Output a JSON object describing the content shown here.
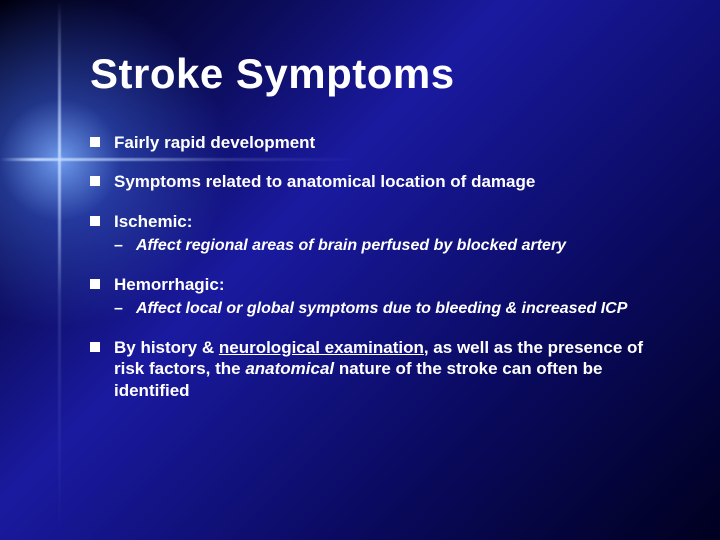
{
  "colors": {
    "text": "#ffffff",
    "bg_gradient": [
      "#000010",
      "#0a0a50",
      "#1a1aa0",
      "#0a0a60",
      "#000020"
    ],
    "flare": "#c8dcff"
  },
  "typography": {
    "title_fontsize": 42,
    "bullet_fontsize": 17,
    "sub_fontsize": 16,
    "font_family": "Verdana"
  },
  "title": "Stroke Symptoms",
  "bullets": {
    "b1": "Fairly rapid development",
    "b2": "Symptoms related to anatomical location of damage",
    "b3": "Ischemic:",
    "b3_sub": "Affect regional areas of brain perfused by blocked artery",
    "b4": "Hemorrhagic:",
    "b4_sub": "Affect local or global symptoms due to bleeding & increased ICP",
    "b5_pre": "By history & ",
    "b5_u": "neurological examination",
    "b5_mid": ", as well as the presence of risk factors, the ",
    "b5_it": "anatomical",
    "b5_post": " nature of the stroke can often be identified"
  }
}
